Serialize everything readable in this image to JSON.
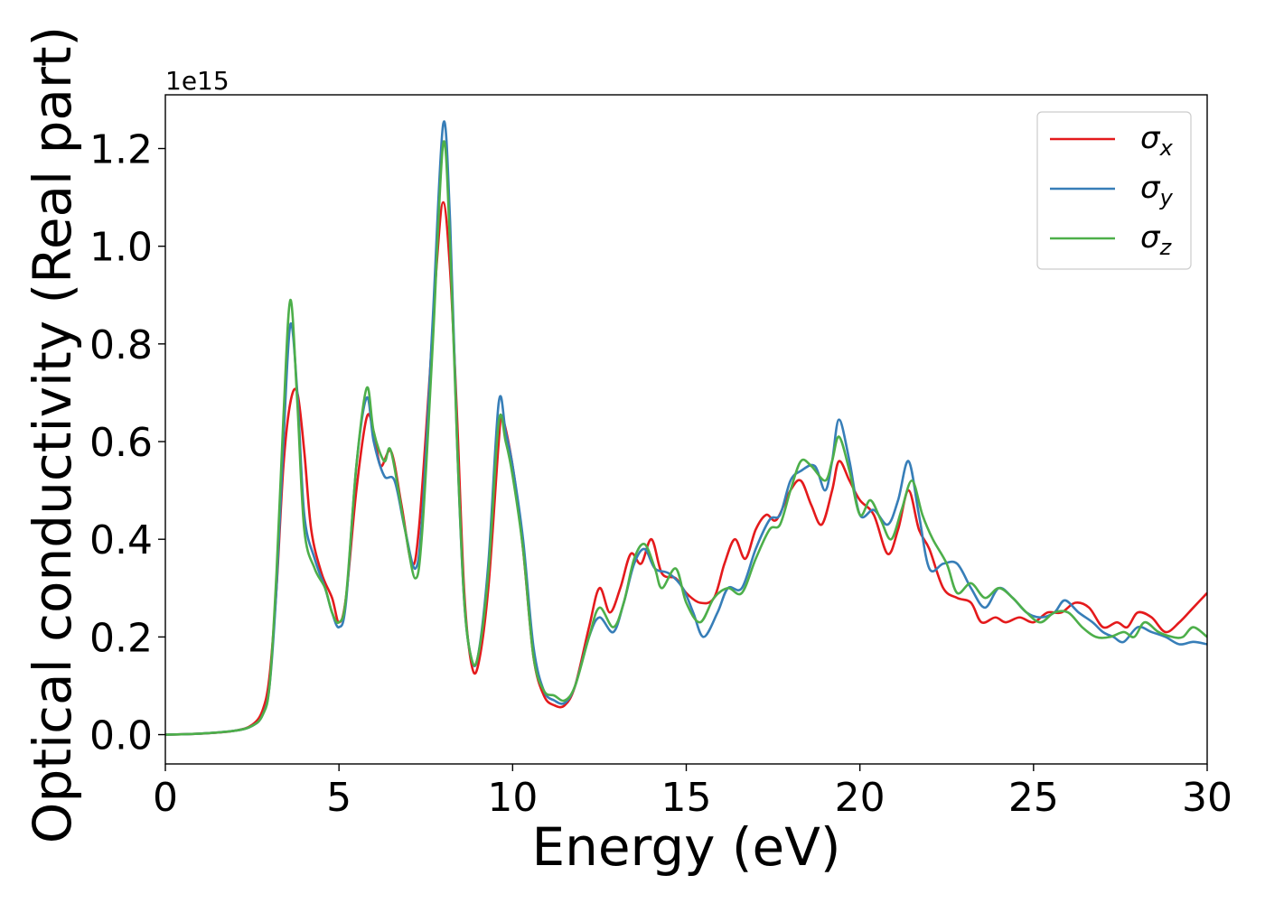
{
  "chart_data": {
    "type": "line",
    "title": "",
    "xlabel": "Energy (eV)",
    "ylabel": "Optical conductivity (Real part)",
    "y_offset_label": "1e15",
    "xlim": [
      0,
      30
    ],
    "ylim": [
      -0.06,
      1.31
    ],
    "xticks": [
      0,
      5,
      10,
      15,
      20,
      25,
      30
    ],
    "xtick_labels": [
      "0",
      "5",
      "10",
      "15",
      "20",
      "25",
      "30"
    ],
    "yticks": [
      0.0,
      0.2,
      0.4,
      0.6,
      0.8,
      1.0,
      1.2
    ],
    "ytick_labels": [
      "0.0",
      "0.2",
      "0.4",
      "0.6",
      "0.8",
      "1.0",
      "1.2"
    ],
    "grid": false,
    "legend_position": "top-right",
    "series": [
      {
        "name": "σx",
        "legend": {
          "symbol": "σ",
          "sub": "x"
        },
        "color": "#e41a1c",
        "points": [
          [
            0,
            0
          ],
          [
            1,
            0.002
          ],
          [
            2,
            0.008
          ],
          [
            2.5,
            0.02
          ],
          [
            2.8,
            0.05
          ],
          [
            3.0,
            0.12
          ],
          [
            3.2,
            0.3
          ],
          [
            3.4,
            0.55
          ],
          [
            3.6,
            0.68
          ],
          [
            3.8,
            0.7
          ],
          [
            4.0,
            0.58
          ],
          [
            4.2,
            0.42
          ],
          [
            4.5,
            0.33
          ],
          [
            4.8,
            0.28
          ],
          [
            5.0,
            0.23
          ],
          [
            5.2,
            0.28
          ],
          [
            5.5,
            0.5
          ],
          [
            5.8,
            0.65
          ],
          [
            6.0,
            0.62
          ],
          [
            6.2,
            0.55
          ],
          [
            6.5,
            0.58
          ],
          [
            6.8,
            0.47
          ],
          [
            7.1,
            0.35
          ],
          [
            7.3,
            0.42
          ],
          [
            7.6,
            0.72
          ],
          [
            7.8,
            0.95
          ],
          [
            8.0,
            1.09
          ],
          [
            8.2,
            0.95
          ],
          [
            8.4,
            0.65
          ],
          [
            8.6,
            0.3
          ],
          [
            8.8,
            0.15
          ],
          [
            9.0,
            0.14
          ],
          [
            9.3,
            0.3
          ],
          [
            9.6,
            0.6
          ],
          [
            9.7,
            0.65
          ],
          [
            10.0,
            0.55
          ],
          [
            10.3,
            0.38
          ],
          [
            10.6,
            0.16
          ],
          [
            10.9,
            0.08
          ],
          [
            11.2,
            0.06
          ],
          [
            11.5,
            0.06
          ],
          [
            11.8,
            0.1
          ],
          [
            12.2,
            0.22
          ],
          [
            12.5,
            0.3
          ],
          [
            12.8,
            0.25
          ],
          [
            13.1,
            0.3
          ],
          [
            13.4,
            0.37
          ],
          [
            13.7,
            0.35
          ],
          [
            14.0,
            0.4
          ],
          [
            14.3,
            0.33
          ],
          [
            14.7,
            0.32
          ],
          [
            15.0,
            0.29
          ],
          [
            15.4,
            0.27
          ],
          [
            15.8,
            0.28
          ],
          [
            16.1,
            0.35
          ],
          [
            16.4,
            0.4
          ],
          [
            16.7,
            0.36
          ],
          [
            17.0,
            0.42
          ],
          [
            17.3,
            0.45
          ],
          [
            17.6,
            0.44
          ],
          [
            18.0,
            0.5
          ],
          [
            18.3,
            0.52
          ],
          [
            18.6,
            0.47
          ],
          [
            18.9,
            0.43
          ],
          [
            19.2,
            0.5
          ],
          [
            19.4,
            0.56
          ],
          [
            19.7,
            0.52
          ],
          [
            20.0,
            0.48
          ],
          [
            20.4,
            0.45
          ],
          [
            20.8,
            0.37
          ],
          [
            21.1,
            0.42
          ],
          [
            21.4,
            0.5
          ],
          [
            21.7,
            0.42
          ],
          [
            22.0,
            0.38
          ],
          [
            22.4,
            0.3
          ],
          [
            22.8,
            0.28
          ],
          [
            23.2,
            0.27
          ],
          [
            23.5,
            0.23
          ],
          [
            23.9,
            0.24
          ],
          [
            24.2,
            0.23
          ],
          [
            24.6,
            0.24
          ],
          [
            25.0,
            0.23
          ],
          [
            25.4,
            0.25
          ],
          [
            25.8,
            0.25
          ],
          [
            26.2,
            0.27
          ],
          [
            26.6,
            0.26
          ],
          [
            27.0,
            0.22
          ],
          [
            27.4,
            0.23
          ],
          [
            27.7,
            0.22
          ],
          [
            28.0,
            0.25
          ],
          [
            28.4,
            0.24
          ],
          [
            28.8,
            0.21
          ],
          [
            29.2,
            0.23
          ],
          [
            29.6,
            0.26
          ],
          [
            30.0,
            0.29
          ]
        ]
      },
      {
        "name": "σy",
        "legend": {
          "symbol": "σ",
          "sub": "y"
        },
        "color": "#377eb8",
        "points": [
          [
            0,
            0
          ],
          [
            1,
            0.002
          ],
          [
            2,
            0.008
          ],
          [
            2.5,
            0.018
          ],
          [
            2.8,
            0.04
          ],
          [
            3.0,
            0.1
          ],
          [
            3.2,
            0.3
          ],
          [
            3.4,
            0.6
          ],
          [
            3.6,
            0.84
          ],
          [
            3.8,
            0.7
          ],
          [
            4.0,
            0.45
          ],
          [
            4.3,
            0.36
          ],
          [
            4.6,
            0.3
          ],
          [
            4.8,
            0.25
          ],
          [
            5.0,
            0.22
          ],
          [
            5.2,
            0.27
          ],
          [
            5.5,
            0.55
          ],
          [
            5.8,
            0.69
          ],
          [
            6.0,
            0.6
          ],
          [
            6.3,
            0.53
          ],
          [
            6.6,
            0.52
          ],
          [
            6.9,
            0.42
          ],
          [
            7.2,
            0.34
          ],
          [
            7.4,
            0.45
          ],
          [
            7.7,
            0.85
          ],
          [
            8.0,
            1.25
          ],
          [
            8.2,
            1.05
          ],
          [
            8.4,
            0.6
          ],
          [
            8.6,
            0.28
          ],
          [
            8.8,
            0.16
          ],
          [
            9.0,
            0.16
          ],
          [
            9.3,
            0.35
          ],
          [
            9.6,
            0.68
          ],
          [
            9.8,
            0.62
          ],
          [
            10.0,
            0.55
          ],
          [
            10.3,
            0.4
          ],
          [
            10.6,
            0.18
          ],
          [
            10.9,
            0.09
          ],
          [
            11.2,
            0.07
          ],
          [
            11.5,
            0.065
          ],
          [
            11.8,
            0.1
          ],
          [
            12.2,
            0.2
          ],
          [
            12.5,
            0.24
          ],
          [
            12.9,
            0.21
          ],
          [
            13.2,
            0.27
          ],
          [
            13.5,
            0.35
          ],
          [
            13.8,
            0.38
          ],
          [
            14.1,
            0.34
          ],
          [
            14.5,
            0.33
          ],
          [
            14.9,
            0.3
          ],
          [
            15.2,
            0.25
          ],
          [
            15.5,
            0.2
          ],
          [
            15.9,
            0.25
          ],
          [
            16.2,
            0.3
          ],
          [
            16.6,
            0.3
          ],
          [
            17.0,
            0.38
          ],
          [
            17.4,
            0.44
          ],
          [
            17.7,
            0.45
          ],
          [
            18.0,
            0.52
          ],
          [
            18.3,
            0.54
          ],
          [
            18.7,
            0.55
          ],
          [
            19.0,
            0.5
          ],
          [
            19.2,
            0.56
          ],
          [
            19.4,
            0.645
          ],
          [
            19.7,
            0.56
          ],
          [
            20.0,
            0.45
          ],
          [
            20.4,
            0.46
          ],
          [
            20.8,
            0.43
          ],
          [
            21.1,
            0.48
          ],
          [
            21.4,
            0.56
          ],
          [
            21.7,
            0.45
          ],
          [
            22.0,
            0.34
          ],
          [
            22.4,
            0.35
          ],
          [
            22.8,
            0.35
          ],
          [
            23.2,
            0.3
          ],
          [
            23.6,
            0.26
          ],
          [
            24.0,
            0.3
          ],
          [
            24.4,
            0.28
          ],
          [
            24.8,
            0.25
          ],
          [
            25.2,
            0.24
          ],
          [
            25.6,
            0.25
          ],
          [
            25.9,
            0.275
          ],
          [
            26.3,
            0.25
          ],
          [
            26.7,
            0.23
          ],
          [
            27.0,
            0.21
          ],
          [
            27.3,
            0.2
          ],
          [
            27.6,
            0.19
          ],
          [
            28.0,
            0.22
          ],
          [
            28.4,
            0.21
          ],
          [
            28.8,
            0.2
          ],
          [
            29.2,
            0.185
          ],
          [
            29.6,
            0.19
          ],
          [
            30.0,
            0.185
          ]
        ]
      },
      {
        "name": "σz",
        "legend": {
          "symbol": "σ",
          "sub": "z"
        },
        "color": "#4daf4a",
        "points": [
          [
            0,
            0
          ],
          [
            1,
            0.002
          ],
          [
            2,
            0.008
          ],
          [
            2.5,
            0.018
          ],
          [
            2.8,
            0.04
          ],
          [
            3.0,
            0.1
          ],
          [
            3.2,
            0.33
          ],
          [
            3.4,
            0.65
          ],
          [
            3.6,
            0.89
          ],
          [
            3.8,
            0.68
          ],
          [
            4.0,
            0.42
          ],
          [
            4.3,
            0.34
          ],
          [
            4.6,
            0.3
          ],
          [
            4.8,
            0.25
          ],
          [
            5.0,
            0.23
          ],
          [
            5.2,
            0.28
          ],
          [
            5.5,
            0.55
          ],
          [
            5.8,
            0.71
          ],
          [
            6.0,
            0.62
          ],
          [
            6.3,
            0.56
          ],
          [
            6.5,
            0.58
          ],
          [
            6.9,
            0.42
          ],
          [
            7.2,
            0.32
          ],
          [
            7.4,
            0.42
          ],
          [
            7.7,
            0.8
          ],
          [
            8.0,
            1.21
          ],
          [
            8.2,
            1.0
          ],
          [
            8.4,
            0.6
          ],
          [
            8.6,
            0.28
          ],
          [
            8.8,
            0.16
          ],
          [
            9.0,
            0.16
          ],
          [
            9.3,
            0.33
          ],
          [
            9.6,
            0.64
          ],
          [
            9.8,
            0.6
          ],
          [
            10.0,
            0.53
          ],
          [
            10.3,
            0.38
          ],
          [
            10.6,
            0.16
          ],
          [
            10.9,
            0.09
          ],
          [
            11.2,
            0.08
          ],
          [
            11.5,
            0.07
          ],
          [
            11.8,
            0.1
          ],
          [
            12.2,
            0.2
          ],
          [
            12.5,
            0.26
          ],
          [
            12.9,
            0.22
          ],
          [
            13.2,
            0.27
          ],
          [
            13.5,
            0.36
          ],
          [
            13.8,
            0.39
          ],
          [
            14.1,
            0.34
          ],
          [
            14.3,
            0.3
          ],
          [
            14.7,
            0.34
          ],
          [
            15.0,
            0.27
          ],
          [
            15.4,
            0.23
          ],
          [
            15.8,
            0.28
          ],
          [
            16.2,
            0.3
          ],
          [
            16.6,
            0.29
          ],
          [
            17.0,
            0.36
          ],
          [
            17.4,
            0.42
          ],
          [
            17.7,
            0.43
          ],
          [
            18.0,
            0.5
          ],
          [
            18.3,
            0.56
          ],
          [
            18.6,
            0.55
          ],
          [
            19.0,
            0.52
          ],
          [
            19.2,
            0.56
          ],
          [
            19.4,
            0.61
          ],
          [
            19.7,
            0.54
          ],
          [
            20.0,
            0.45
          ],
          [
            20.3,
            0.48
          ],
          [
            20.6,
            0.44
          ],
          [
            20.9,
            0.4
          ],
          [
            21.2,
            0.46
          ],
          [
            21.5,
            0.52
          ],
          [
            21.8,
            0.45
          ],
          [
            22.1,
            0.4
          ],
          [
            22.5,
            0.35
          ],
          [
            22.8,
            0.29
          ],
          [
            23.2,
            0.31
          ],
          [
            23.6,
            0.28
          ],
          [
            24.0,
            0.3
          ],
          [
            24.4,
            0.28
          ],
          [
            24.8,
            0.25
          ],
          [
            25.2,
            0.23
          ],
          [
            25.6,
            0.25
          ],
          [
            26.0,
            0.25
          ],
          [
            26.4,
            0.22
          ],
          [
            26.8,
            0.2
          ],
          [
            27.2,
            0.2
          ],
          [
            27.6,
            0.21
          ],
          [
            27.9,
            0.2
          ],
          [
            28.2,
            0.23
          ],
          [
            28.6,
            0.21
          ],
          [
            29.0,
            0.2
          ],
          [
            29.3,
            0.2
          ],
          [
            29.6,
            0.22
          ],
          [
            30.0,
            0.2
          ]
        ]
      }
    ]
  }
}
